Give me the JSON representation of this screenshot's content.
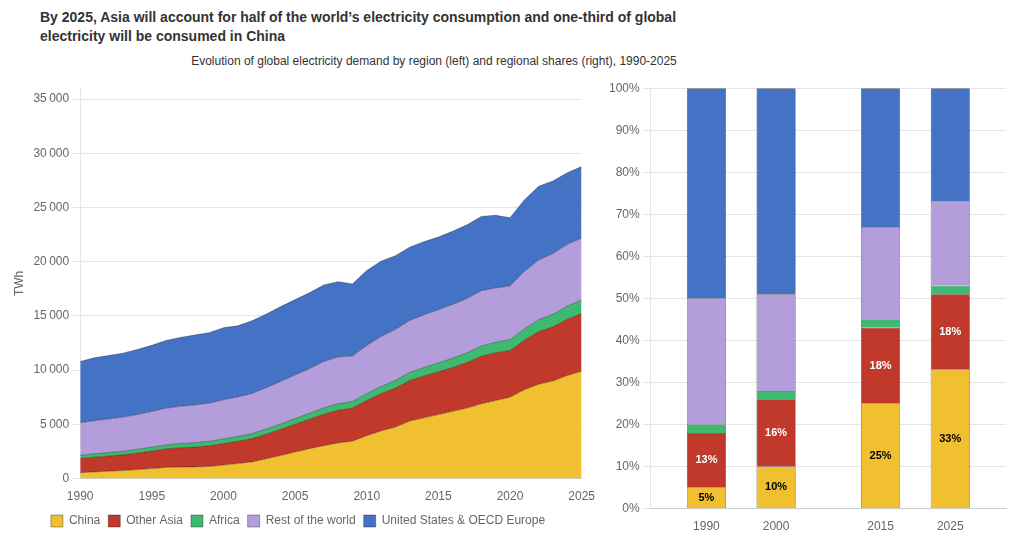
{
  "title": [
    "By 2025, Asia will account for half of the world’s electricity consumption and one-third of global",
    "electricity will be consumed in China"
  ],
  "subtitle": "Evolution of global electricity demand by region (left) and regional shares (right), 1990-2025",
  "chart_data": [
    {
      "type": "area",
      "stacked": true,
      "grid": true,
      "legend": "bottom",
      "ylabel": "TWh",
      "x": [
        1990,
        1991,
        1992,
        1993,
        1994,
        1995,
        1996,
        1997,
        1998,
        1999,
        2000,
        2001,
        2002,
        2003,
        2004,
        2005,
        2006,
        2007,
        2008,
        2009,
        2010,
        2011,
        2012,
        2013,
        2014,
        2015,
        2016,
        2017,
        2018,
        2019,
        2020,
        2021,
        2022,
        2023,
        2024,
        2025
      ],
      "xlim": [
        1990,
        2025
      ],
      "xticks": [
        1990,
        1995,
        2000,
        2005,
        2010,
        2015,
        2020,
        2025
      ],
      "ylim": [
        0,
        36000
      ],
      "yticks": [
        0,
        {
          "value": 5000,
          "label": "5 000"
        },
        {
          "value": 10000,
          "label": "10 000"
        },
        {
          "value": 15000,
          "label": "15 000"
        },
        {
          "value": 20000,
          "label": "20 000"
        },
        {
          "value": 25000,
          "label": "25 000"
        },
        {
          "value": 30000,
          "label": "30 000"
        },
        {
          "value": 35000,
          "label": "35 000"
        }
      ],
      "series": [
        {
          "name": "China",
          "color": "#f0c030",
          "values": [
            550,
            620,
            680,
            740,
            830,
            930,
            1030,
            1070,
            1080,
            1120,
            1250,
            1390,
            1540,
            1830,
            2130,
            2450,
            2760,
            3040,
            3290,
            3450,
            3950,
            4400,
            4750,
            5300,
            5600,
            5900,
            6200,
            6500,
            6900,
            7200,
            7500,
            8200,
            8700,
            9000,
            9500,
            9900
          ]
        },
        {
          "name": "Other Asia",
          "color": "#c0392b",
          "values": [
            1300,
            1360,
            1400,
            1450,
            1530,
            1620,
            1700,
            1780,
            1830,
            1900,
            1980,
            2060,
            2150,
            2270,
            2410,
            2560,
            2720,
            2900,
            3020,
            3050,
            3250,
            3440,
            3600,
            3750,
            3870,
            3950,
            4050,
            4200,
            4380,
            4400,
            4320,
            4550,
            4850,
            5000,
            5200,
            5300
          ]
        },
        {
          "name": "Africa",
          "color": "#3dba6f",
          "values": [
            300,
            310,
            320,
            330,
            345,
            360,
            375,
            390,
            400,
            415,
            430,
            445,
            460,
            480,
            500,
            525,
            550,
            580,
            600,
            600,
            630,
            660,
            700,
            740,
            780,
            820,
            860,
            900,
            950,
            980,
            990,
            1050,
            1100,
            1150,
            1200,
            1280
          ]
        },
        {
          "name": "Rest of the world",
          "color": "#b39ddb",
          "values": [
            3000,
            3050,
            3100,
            3150,
            3200,
            3280,
            3380,
            3430,
            3480,
            3520,
            3600,
            3640,
            3700,
            3800,
            3920,
            4020,
            4100,
            4280,
            4300,
            4200,
            4450,
            4600,
            4700,
            4800,
            4850,
            4900,
            4950,
            5000,
            5100,
            5000,
            4950,
            5300,
            5500,
            5600,
            5700,
            5700
          ]
        },
        {
          "name": "United States & OECD Europe",
          "color": "#4472c4",
          "values": [
            5650,
            5800,
            5850,
            5900,
            6000,
            6100,
            6250,
            6350,
            6450,
            6500,
            6650,
            6550,
            6700,
            6800,
            6900,
            6950,
            7000,
            7050,
            6950,
            6650,
            6900,
            6950,
            6800,
            6750,
            6750,
            6700,
            6750,
            6800,
            6850,
            6700,
            6300,
            6600,
            6800,
            6700,
            6600,
            6600
          ]
        }
      ]
    },
    {
      "type": "bar",
      "stacked": true,
      "grid": true,
      "x": [
        1990,
        2000,
        2015,
        2025
      ],
      "xlim": [
        1982,
        2033
      ],
      "xticks": [
        1990,
        2000,
        2015,
        2025
      ],
      "ylim": [
        0,
        100
      ],
      "yticks": [
        {
          "value": 0,
          "label": "0%"
        },
        {
          "value": 10,
          "label": "10%"
        },
        {
          "value": 20,
          "label": "20%"
        },
        {
          "value": 30,
          "label": "30%"
        },
        {
          "value": 40,
          "label": "40%"
        },
        {
          "value": 50,
          "label": "50%"
        },
        {
          "value": 60,
          "label": "60%"
        },
        {
          "value": 70,
          "label": "70%"
        },
        {
          "value": 80,
          "label": "80%"
        },
        {
          "value": 90,
          "label": "90%"
        },
        {
          "value": 100,
          "label": "100%"
        }
      ],
      "series": [
        {
          "name": "China",
          "color": "#f0c030",
          "values": [
            5,
            10,
            25,
            33
          ],
          "data_labels": true,
          "value_labels": [
            "5%",
            "10%",
            "25%",
            "33%"
          ]
        },
        {
          "name": "Other Asia",
          "color": "#c0392b",
          "values": [
            13,
            16,
            18,
            18
          ],
          "data_labels": true,
          "value_labels": [
            "13%",
            "16%",
            "18%",
            "18%"
          ]
        },
        {
          "name": "Africa",
          "color": "#3dba6f",
          "values": [
            2,
            2,
            2,
            2
          ]
        },
        {
          "name": "Rest of the world",
          "color": "#b39ddb",
          "values": [
            30,
            23,
            22,
            20
          ]
        },
        {
          "name": "United States & OECD Europe",
          "color": "#4472c4",
          "values": [
            50,
            49,
            33,
            27
          ]
        }
      ]
    }
  ]
}
